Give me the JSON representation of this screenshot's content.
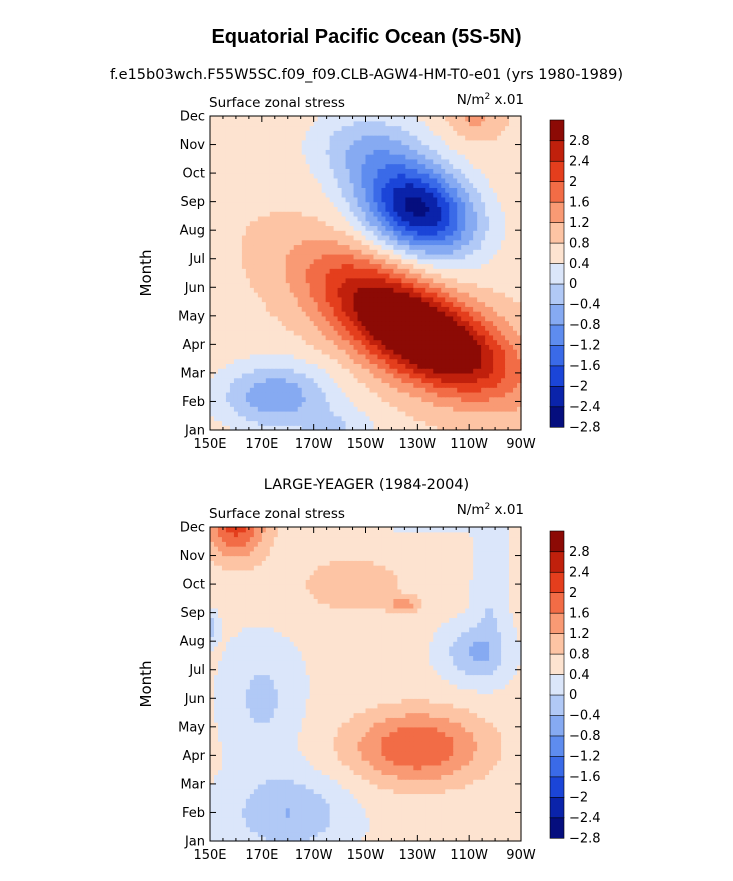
{
  "figure": {
    "title": "Equatorial Pacific Ocean (5S-5N)",
    "subtitle": "f.e15b03wch.F55W5SC.f09_f09.CLB-AGW4-HM-T0-e01 (yrs 1980-1989)"
  },
  "colorbar": {
    "levels": [
      -2.8,
      -2.4,
      -2,
      -1.6,
      -1.2,
      -0.8,
      -0.4,
      0,
      0.4,
      0.8,
      1.2,
      1.6,
      2,
      2.4,
      2.8
    ],
    "labels": [
      "2.8",
      "2.4",
      "2",
      "1.6",
      "1.2",
      "0.8",
      "0.4",
      "0",
      "−0.4",
      "−0.8",
      "−1.2",
      "−1.6",
      "−2",
      "−2.4",
      "−2.8"
    ],
    "colors": [
      "#050e7e",
      "#0a23aa",
      "#1b45d8",
      "#3a6ae8",
      "#5e8cef",
      "#86aaf2",
      "#b1c9f6",
      "#dbe6fa",
      "#fde3d0",
      "#fdc4a4",
      "#f99a74",
      "#f26c46",
      "#e43e1d",
      "#c0200c",
      "#8c0a05"
    ]
  },
  "chart_data": [
    {
      "type": "heatmap",
      "name": "model",
      "title": "",
      "left_label": "Surface zonal stress",
      "right_label_base": "N/m",
      "right_label_exp": "2",
      "right_label_tail": " x.01",
      "ylabel": "Month",
      "x_ticks": [
        "150E",
        "170E",
        "170W",
        "150W",
        "130W",
        "110W",
        "90W"
      ],
      "x_range": [
        150,
        270
      ],
      "y_ticks": [
        "Jan",
        "Feb",
        "Mar",
        "Apr",
        "May",
        "Jun",
        "Jul",
        "Aug",
        "Sep",
        "Oct",
        "Nov",
        "Dec"
      ],
      "baseline": 0.3,
      "features": [
        {
          "lon": 235,
          "mon": 3.1,
          "sx": 32,
          "sy": 1.6,
          "amp": 3.0,
          "tilt": -0.03
        },
        {
          "lon": 210,
          "mon": 5.0,
          "sx": 30,
          "sy": 1.5,
          "amp": 1.2,
          "tilt": -0.03
        },
        {
          "lon": 230,
          "mon": 7.8,
          "sx": 22,
          "sy": 1.6,
          "amp": -3.2,
          "tilt": -0.02
        },
        {
          "lon": 210,
          "mon": 10.0,
          "sx": 22,
          "sy": 1.3,
          "amp": -0.9,
          "tilt": 0
        },
        {
          "lon": 175,
          "mon": 1.2,
          "sx": 22,
          "sy": 1.2,
          "amp": -1.4,
          "tilt": 0
        },
        {
          "lon": 200,
          "mon": 0.0,
          "sx": 15,
          "sy": 0.8,
          "amp": -0.6,
          "tilt": 0
        },
        {
          "lon": 252,
          "mon": 11.2,
          "sx": 10,
          "sy": 0.9,
          "amp": 0.7,
          "tilt": 0
        }
      ]
    },
    {
      "type": "heatmap",
      "name": "obs",
      "title": "LARGE-YEAGER (1984-2004)",
      "left_label": "Surface zonal stress",
      "right_label_base": "N/m",
      "right_label_exp": "2",
      "right_label_tail": " x.01",
      "ylabel": "Month",
      "x_ticks": [
        "150E",
        "170E",
        "170W",
        "150W",
        "130W",
        "110W",
        "90W"
      ],
      "x_range": [
        150,
        270
      ],
      "y_ticks": [
        "Jan",
        "Feb",
        "Mar",
        "Apr",
        "May",
        "Jun",
        "Jul",
        "Aug",
        "Sep",
        "Oct",
        "Nov",
        "Dec"
      ],
      "baseline": 0.1,
      "features": [
        {
          "lon": 230,
          "mon": 3.3,
          "sx": 26,
          "sy": 1.3,
          "amp": 1.5,
          "tilt": 0
        },
        {
          "lon": 160,
          "mon": 11.2,
          "sx": 12,
          "sy": 1.3,
          "amp": 1.7,
          "tilt": 0
        },
        {
          "lon": 205,
          "mon": 9.0,
          "sx": 25,
          "sy": 1.2,
          "amp": 0.5,
          "tilt": 0
        },
        {
          "lon": 225,
          "mon": 8.3,
          "sx": 6,
          "sy": 0.25,
          "amp": 0.8,
          "tilt": 0
        },
        {
          "lon": 180,
          "mon": 1.0,
          "sx": 22,
          "sy": 1.4,
          "amp": -0.9,
          "tilt": 0
        },
        {
          "lon": 170,
          "mon": 5.0,
          "sx": 14,
          "sy": 2.0,
          "amp": -0.6,
          "tilt": 0
        },
        {
          "lon": 252,
          "mon": 6.6,
          "sx": 12,
          "sy": 1.0,
          "amp": -0.9,
          "tilt": 0
        },
        {
          "lon": 232,
          "mon": 11.8,
          "sx": 30,
          "sy": 0.7,
          "amp": -0.7,
          "tilt": 0
        },
        {
          "lon": 258,
          "mon": 9.0,
          "sx": 6,
          "sy": 2.5,
          "amp": -0.5,
          "tilt": 0
        },
        {
          "lon": 150,
          "mon": 7.5,
          "sx": 3,
          "sy": 0.5,
          "amp": -0.7,
          "tilt": 0
        }
      ]
    }
  ]
}
